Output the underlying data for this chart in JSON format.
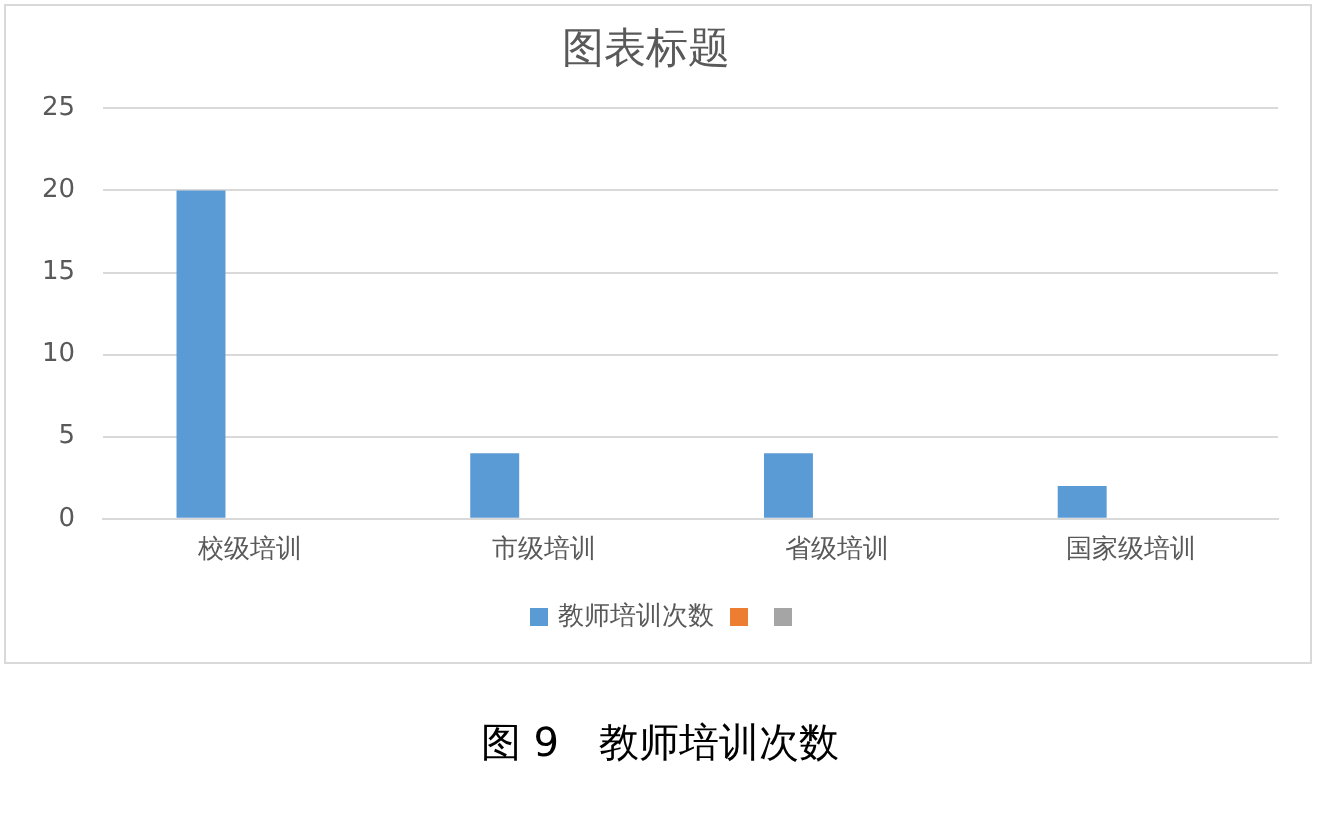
{
  "chart_data": {
    "type": "bar",
    "title": "图表标题",
    "categories": [
      "校级培训",
      "市级培训",
      "省级培训",
      "国家级培训"
    ],
    "series": [
      {
        "name": "教师培训次数",
        "color": "#5b9bd5",
        "values": [
          20,
          4,
          4,
          2
        ]
      },
      {
        "color": "#ed7d31",
        "values": [
          null,
          null,
          null,
          null
        ]
      },
      {
        "color": "#a5a5a5",
        "values": [
          null,
          null,
          null,
          null
        ]
      }
    ],
    "ylim": [
      0,
      25
    ],
    "yticks": [
      0,
      5,
      10,
      15,
      20,
      25
    ],
    "grid": "y",
    "legend": "bottom",
    "annotations": [
      "图 9　教师培训次数"
    ]
  }
}
